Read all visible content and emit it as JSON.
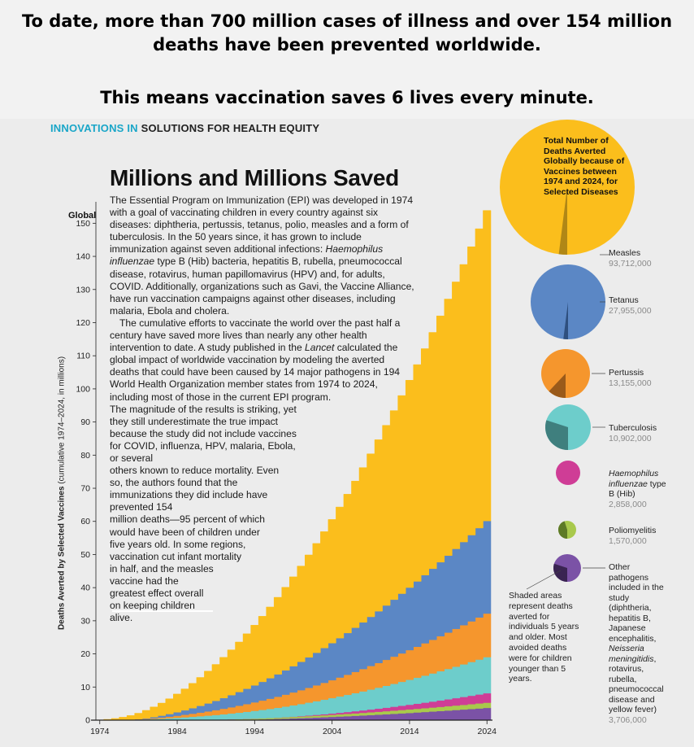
{
  "banner": {
    "line1": "To date, more than 700 million cases of illness and over 154 million",
    "line2": "deaths have been prevented worldwide.",
    "line3": "This means vaccination saves 6 lives every minute."
  },
  "kicker": {
    "part1": "INNOVATIONS IN",
    "part2": "SOLUTIONS FOR HEALTH EQUITY"
  },
  "article": {
    "headline": "Millions and Millions Saved",
    "para1_a": "The Essential Program on Immunization (EPI) was developed in 1974 with a goal of vaccinating children in every country against six diseases: diphtheria, pertussis, tetanus, polio, measles and a form of tuberculosis. In the 50 years since, it has grown to include immunization against seven additional infections: ",
    "para1_italic": "Haemophilus influenzae",
    "para1_b": " type B (Hib) bacteria, hepatitis B, rubella, pneumococcal disease, rotavirus, human papillomavirus (HPV) and, for adults, COVID. Additionally, organizations such as Gavi, the Vaccine Alliance, have run vaccination campaigns against other diseases, including malaria, Ebola and cholera.",
    "para2_a": "The cumulative efforts to vaccinate the world over the past half a century have saved more lives than nearly any other health intervention to date. A study published in the ",
    "para2_italic": "Lancet",
    "para2_b": " calculated the global impact of worldwide vaccination by modeling the averted deaths that could have been caused by 14 major pathogens in 194 World Health Organization member states from 1974 to 2024, including most of those in the current EPI program.",
    "para2_c": "The magnitude of the results is striking, yet they still underestimate the true impact because the study did not include vaccines for COVID, influenza, HPV, malaria, Ebola, or several",
    "para2_d": "others known to reduce mortality. Even so, the authors found that the immunizations they did include have prevented 154",
    "para2_e": "million deaths—95 percent of which would have been of children under five years old. In some regions, vaccination cut infant mortality",
    "para2_f": "in half, and the measles vaccine had the greatest effect overall on keeping children alive."
  },
  "chart_data": {
    "type": "area",
    "subtype": "stacked-step",
    "region_label": "Global",
    "ylabel_bold": "Deaths Averted by Selected Vaccines",
    "ylabel_rest": " (cumulative 1974–2024, in millions)",
    "ylim": [
      0,
      155
    ],
    "yticks": [
      0,
      10,
      20,
      30,
      40,
      50,
      60,
      70,
      80,
      90,
      100,
      110,
      120,
      130,
      140,
      150
    ],
    "xticks": [
      "1974",
      "1984",
      "1994",
      "2004",
      "2014",
      "2024"
    ],
    "x_start": 1974,
    "x_end": 2024,
    "series": [
      {
        "name": "Other pathogens",
        "color": "#7b52a6",
        "final_millions": 3.706
      },
      {
        "name": "Poliomyelitis",
        "color": "#a9c94c",
        "final_millions": 1.57
      },
      {
        "name": "Haemophilus influenzae type B (Hib)",
        "color": "#cf3d96",
        "final_millions": 2.858
      },
      {
        "name": "Tuberculosis",
        "color": "#6dcdcb",
        "final_millions": 10.902
      },
      {
        "name": "Pertussis",
        "color": "#f5962d",
        "final_millions": 13.155
      },
      {
        "name": "Tetanus",
        "color": "#5b87c5",
        "final_millions": 27.955
      },
      {
        "name": "Measles",
        "color": "#fbbe1c",
        "final_millions": 93.712
      }
    ],
    "pies": {
      "title": "Total Number of Deaths Averted Globally because of Vaccines between 1974 and 2024, for Selected Diseases",
      "items": [
        {
          "name": "Measles",
          "value": "93,712,000",
          "color": "#fbbe1c",
          "shade": "#b08716",
          "shaded_fraction": 0.02
        },
        {
          "name": "Tetanus",
          "value": "27,955,000",
          "color": "#5b87c5",
          "shade": "#2e4f7e",
          "shaded_fraction": 0.02
        },
        {
          "name": "Pertussis",
          "value": "13,155,000",
          "color": "#f5962d",
          "shade": "#9a5a1a",
          "shaded_fraction": 0.12
        },
        {
          "name": "Tuberculosis",
          "value": "10,902,000",
          "color": "#6dcdcb",
          "shade": "#3f7f7e",
          "shaded_fraction": 0.3
        },
        {
          "name_italic": "Haemophilus influenzae",
          "name": " type B (Hib)",
          "value": "2,858,000",
          "color": "#cf3d96",
          "shade": "#8a2563",
          "shaded_fraction": 0.0
        },
        {
          "name": "Poliomyelitis",
          "value": "1,570,000",
          "color": "#a9c94c",
          "shade": "#5d7a26",
          "shaded_fraction": 0.45
        },
        {
          "name": "Other pathogens included in the study (diphtheria, hepatitis B, Japanese encephalitis, ",
          "name_italic": "Neisseria meningitidis",
          "name_after": ", rotavirus, rubella, pneumococcal disease and yellow fever)",
          "value": "3,706,000",
          "color": "#7b52a6",
          "shade": "#3a2452",
          "shaded_fraction": 0.3
        }
      ]
    },
    "note": "Shaded areas represent deaths averted for individuals 5 years and older. Most avoided deaths were for children younger than 5 years."
  }
}
